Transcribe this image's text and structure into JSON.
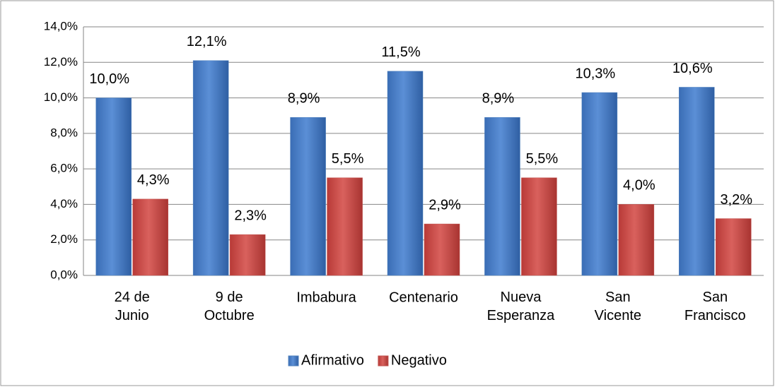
{
  "chart_data": {
    "type": "bar",
    "categories": [
      "24 de Junio",
      "9 de Octubre",
      "Imbabura",
      "Centenario",
      "Nueva Esperanza",
      "San Vicente",
      "San Francisco"
    ],
    "series": [
      {
        "name": "Afirmativo",
        "color": "#4f81bd",
        "values": [
          10.0,
          12.1,
          8.9,
          11.5,
          8.9,
          10.3,
          10.6
        ],
        "value_labels": [
          "10,0%",
          "12,1%",
          "8,9%",
          "11,5%",
          "8,9%",
          "10,3%",
          "10,6%"
        ]
      },
      {
        "name": "Negativo",
        "color": "#c0504d",
        "values": [
          4.3,
          2.3,
          5.5,
          2.9,
          5.5,
          4.0,
          3.2
        ],
        "value_labels": [
          "4,3%",
          "2,3%",
          "5,5%",
          "2,9%",
          "5,5%",
          "4,0%",
          "3,2%"
        ]
      }
    ],
    "ylim": [
      0,
      14
    ],
    "yticks": [
      {
        "value": 0,
        "label": "0,0%"
      },
      {
        "value": 2,
        "label": "2,0%"
      },
      {
        "value": 4,
        "label": "4,0%"
      },
      {
        "value": 6,
        "label": "6,0%"
      },
      {
        "value": 8,
        "label": "8,0%"
      },
      {
        "value": 10,
        "label": "10,0%"
      },
      {
        "value": 12,
        "label": "12,0%"
      },
      {
        "value": 14,
        "label": "14,0%"
      }
    ],
    "grid": true,
    "legend": "bottom"
  }
}
